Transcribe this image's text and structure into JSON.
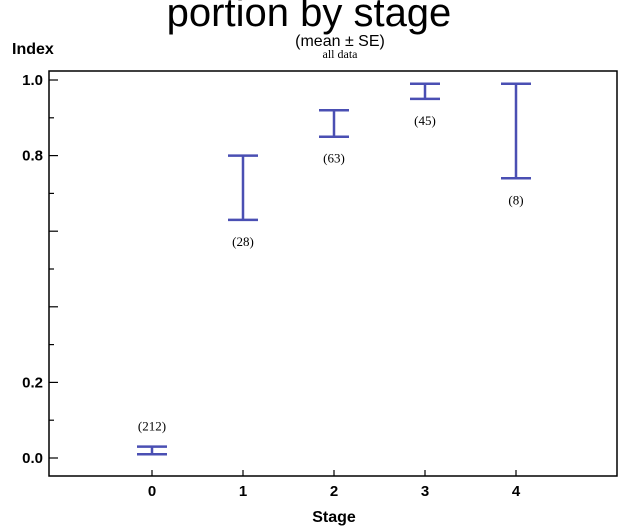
{
  "header": {
    "title_fragment": "portion by stage",
    "subtitle": "(mean ± SE)"
  },
  "chart_data": {
    "type": "errorbar",
    "panel_label": "all data",
    "ylabel": "Index",
    "xlabel": "Stage",
    "x_ticks": [
      "0",
      "1",
      "2",
      "3",
      "4"
    ],
    "y_tick_labels": [
      "0.0",
      "0.2",
      "",
      "",
      "0.8",
      "1.0"
    ],
    "ylim": [
      0,
      1.0
    ],
    "xlim": [
      -1,
      5
    ],
    "grid": false,
    "points": [
      {
        "x": 0,
        "low": 0.01,
        "high": 0.03,
        "n_label": "(212)"
      },
      {
        "x": 1,
        "low": 0.63,
        "high": 0.8,
        "n_label": "(28)"
      },
      {
        "x": 2,
        "low": 0.85,
        "high": 0.92,
        "n_label": "(63)"
      },
      {
        "x": 3,
        "low": 0.95,
        "high": 0.99,
        "n_label": "(45)"
      },
      {
        "x": 4,
        "low": 0.74,
        "high": 0.99,
        "n_label": "(8)"
      }
    ],
    "colors": {
      "errorbar": "#4a4fb3",
      "axis": "#000000"
    }
  }
}
